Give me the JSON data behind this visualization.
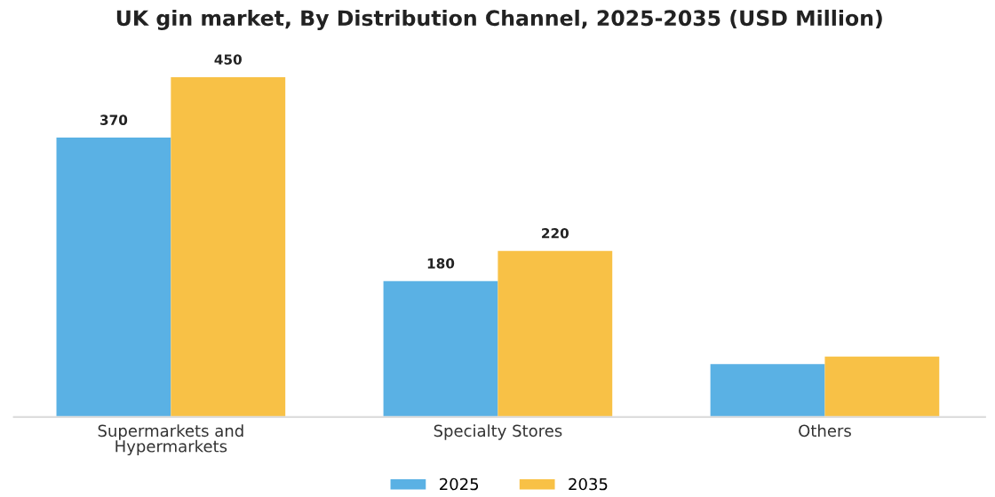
{
  "chart_data": {
    "type": "bar",
    "title": "UK gin market, By Distribution Channel, 2025-2035 (USD Million)",
    "categories": [
      "Supermarkets and\nHypermarkets",
      "Specialty Stores",
      "Others"
    ],
    "series": [
      {
        "name": "2025",
        "color": "#5ab1e4",
        "values": [
          370,
          180,
          70
        ],
        "value_labels": [
          "370",
          "180",
          null
        ]
      },
      {
        "name": "2035",
        "color": "#f8c146",
        "values": [
          450,
          220,
          80
        ],
        "value_labels": [
          "450",
          "220",
          null
        ]
      }
    ],
    "tick_labels": "x",
    "grid": false,
    "legend": "bottom"
  }
}
